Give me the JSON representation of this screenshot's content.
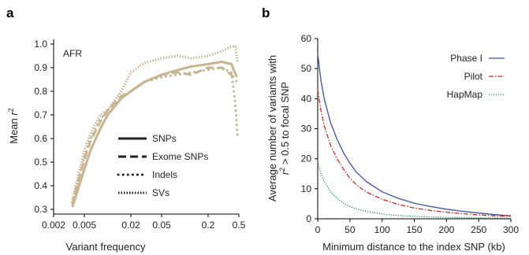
{
  "chart_data": [
    {
      "panel": "a",
      "type": "line",
      "title": "",
      "annotation": "AFR",
      "xlabel": "Variant frequency",
      "ylabel_main": "Mean ",
      "ylabel_var": "r",
      "ylabel_sup": "2",
      "x_scale": "log",
      "xlim": [
        0.002,
        0.5
      ],
      "ylim": [
        0.28,
        1.02
      ],
      "x_ticks": [
        {
          "value": 0.002,
          "label": "0.002"
        },
        {
          "value": 0.005,
          "label": "0.005"
        },
        {
          "value": 0.02,
          "label": "0.02"
        },
        {
          "value": 0.05,
          "label": "0.05"
        },
        {
          "value": 0.2,
          "label": "0.2"
        },
        {
          "value": 0.5,
          "label": "0.5"
        }
      ],
      "y_ticks": [
        {
          "value": 0.3,
          "label": "0.3"
        },
        {
          "value": 0.4,
          "label": "0.4"
        },
        {
          "value": 0.5,
          "label": "0.5"
        },
        {
          "value": 0.6,
          "label": "0.6"
        },
        {
          "value": 0.7,
          "label": "0.7"
        },
        {
          "value": 0.8,
          "label": "0.8"
        },
        {
          "value": 0.9,
          "label": "0.9"
        },
        {
          "value": 1.0,
          "label": "1.0"
        }
      ],
      "legend_position": "center-right",
      "color": "#c8b48f",
      "series": [
        {
          "name": "SNPs",
          "dash": "solid",
          "width": 3,
          "x": [
            0.0035,
            0.004,
            0.005,
            0.006,
            0.008,
            0.01,
            0.015,
            0.02,
            0.03,
            0.05,
            0.08,
            0.12,
            0.2,
            0.3,
            0.4,
            0.47
          ],
          "y": [
            0.31,
            0.37,
            0.47,
            0.55,
            0.64,
            0.7,
            0.77,
            0.8,
            0.84,
            0.87,
            0.89,
            0.905,
            0.915,
            0.925,
            0.915,
            0.86
          ]
        },
        {
          "name": "Exome SNPs",
          "dash": "longdash",
          "width": 3,
          "x": [
            0.0035,
            0.004,
            0.005,
            0.006,
            0.008,
            0.01,
            0.015,
            0.02,
            0.03,
            0.05,
            0.08,
            0.12,
            0.2,
            0.3,
            0.4,
            0.47
          ],
          "y": [
            0.32,
            0.4,
            0.51,
            0.59,
            0.67,
            0.72,
            0.78,
            0.8,
            0.84,
            0.87,
            0.88,
            0.87,
            0.9,
            0.9,
            0.87,
            0.84
          ]
        },
        {
          "name": "Indels",
          "dash": "dot",
          "width": 3,
          "x": [
            0.0035,
            0.004,
            0.005,
            0.006,
            0.008,
            0.01,
            0.015,
            0.02,
            0.03,
            0.05,
            0.08,
            0.12,
            0.2,
            0.3,
            0.4,
            0.45,
            0.48
          ],
          "y": [
            0.33,
            0.4,
            0.52,
            0.6,
            0.68,
            0.72,
            0.77,
            0.8,
            0.84,
            0.86,
            0.87,
            0.88,
            0.89,
            0.9,
            0.88,
            0.75,
            0.61
          ]
        },
        {
          "name": "SVs",
          "dash": "fine",
          "width": 3,
          "x": [
            0.0035,
            0.004,
            0.005,
            0.006,
            0.008,
            0.01,
            0.015,
            0.02,
            0.03,
            0.05,
            0.08,
            0.12,
            0.2,
            0.3,
            0.4,
            0.45,
            0.48
          ],
          "y": [
            0.34,
            0.42,
            0.55,
            0.62,
            0.7,
            0.72,
            0.8,
            0.88,
            0.92,
            0.94,
            0.95,
            0.94,
            0.95,
            0.97,
            0.99,
            0.99,
            0.92
          ]
        }
      ]
    },
    {
      "panel": "b",
      "type": "line",
      "title": "",
      "xlabel": "Minimum distance to the index SNP (kb)",
      "ylabel_line1": "Average number of variants with",
      "ylabel_line2_var": "r",
      "ylabel_line2_sup": "2",
      "ylabel_line2_rest": " > 0.5 to focal SNP",
      "xlim": [
        0,
        300
      ],
      "ylim": [
        0,
        60
      ],
      "x_ticks": [
        0,
        50,
        100,
        150,
        200,
        250,
        300
      ],
      "y_ticks": [
        0,
        10,
        20,
        30,
        40,
        50,
        60
      ],
      "legend_position": "top-right",
      "series": [
        {
          "name": "Phase I",
          "color": "#3a52a6",
          "dash": "solid",
          "x": [
            0,
            5,
            10,
            20,
            30,
            40,
            50,
            60,
            75,
            100,
            125,
            150,
            175,
            200,
            225,
            250,
            275,
            300
          ],
          "y": [
            55,
            46,
            40,
            32,
            26.5,
            22,
            18.5,
            15.5,
            12.5,
            9,
            6.8,
            5.2,
            4.1,
            3.2,
            2.5,
            1.9,
            1.4,
            1.0
          ]
        },
        {
          "name": "Pilot",
          "color": "#d4282a",
          "dash": "dashdot",
          "x": [
            0,
            5,
            10,
            20,
            30,
            40,
            50,
            60,
            75,
            100,
            125,
            150,
            175,
            200,
            225,
            250,
            275,
            300
          ],
          "y": [
            43,
            36,
            31,
            24.5,
            20,
            16.5,
            13.5,
            11.3,
            9,
            6.5,
            4.8,
            3.6,
            2.8,
            2.2,
            1.7,
            1.3,
            1.0,
            0.8
          ]
        },
        {
          "name": "HapMap",
          "color": "#1a8a4a",
          "dash": "dot",
          "x": [
            0,
            5,
            10,
            20,
            30,
            40,
            50,
            60,
            75,
            100,
            125,
            150,
            175,
            200,
            225,
            250,
            275,
            300
          ],
          "y": [
            19,
            15,
            12.5,
            9,
            6.8,
            5.2,
            4.1,
            3.3,
            2.5,
            1.6,
            1.1,
            0.8,
            0.6,
            0.45,
            0.35,
            0.3,
            0.25,
            0.2
          ]
        }
      ]
    }
  ]
}
